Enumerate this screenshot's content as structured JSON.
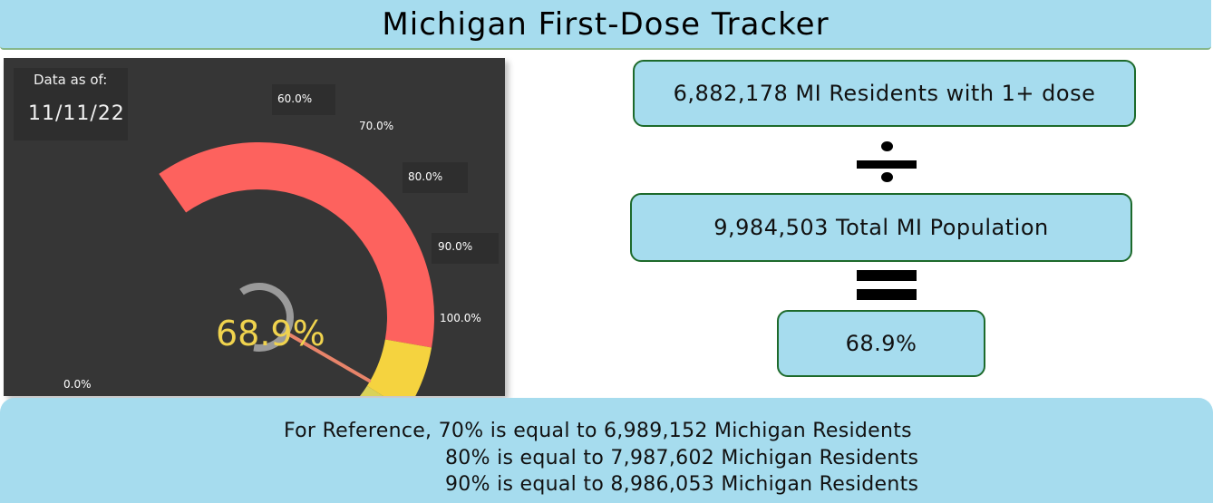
{
  "header": {
    "title": "Michigan First-Dose Tracker"
  },
  "gauge": {
    "date_label": "Data as of:",
    "date_value": "11/11/22",
    "value_label": "68.9%",
    "value_fraction": 0.689,
    "ticks": [
      "0.0%",
      "60.0%",
      "70.0%",
      "80.0%",
      "90.0%",
      "100.0%"
    ],
    "bands": [
      {
        "from": 0.0,
        "to": 0.6,
        "color": "#fd625e"
      },
      {
        "from": 0.6,
        "to": 0.7,
        "color": "#f5d33f"
      },
      {
        "from": 0.7,
        "to": 0.8,
        "color": "#d9d259"
      },
      {
        "from": 0.8,
        "to": 0.9,
        "color": "#b1c15d"
      },
      {
        "from": 0.9,
        "to": 1.0,
        "color": "#01b8aa"
      }
    ],
    "needle_color": "#e8846a",
    "center_ring_color": "#9a9a9a",
    "value_color": "#f0d34e"
  },
  "calculation": {
    "numerator": "6,882,178 MI Residents with 1+ dose",
    "denominator": "9,984,503 Total MI Population",
    "result": "68.9%"
  },
  "reference": {
    "line1": "For Reference, 70% is equal to 6,989,152 Michigan Residents",
    "line2": "80% is equal to 7,987,602 Michigan Residents",
    "line3": "90% is equal to 8,986,053 Michigan Residents"
  },
  "colors": {
    "header_bg": "#a6dcee",
    "panel_bg": "#363636",
    "box_border": "#1d6a2b"
  }
}
